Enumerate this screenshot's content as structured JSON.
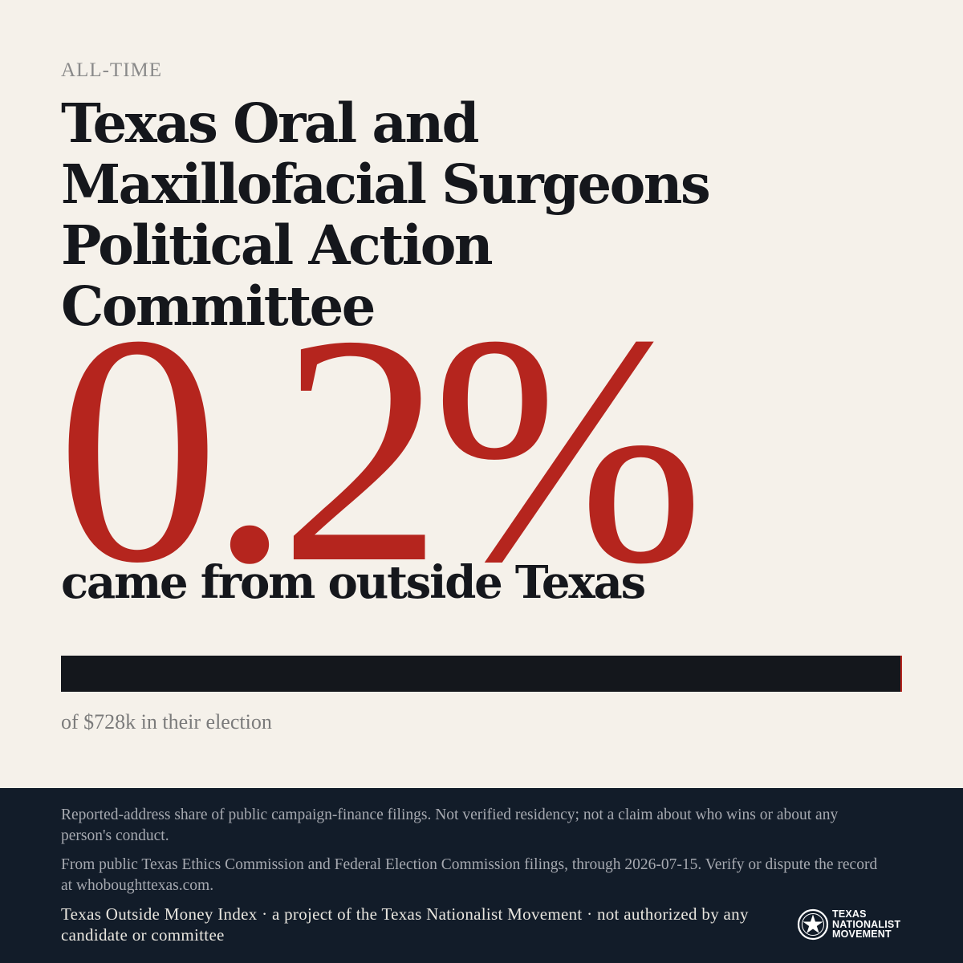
{
  "eyebrow": "ALL-TIME",
  "committee_name": "Texas Oral and Maxillofacial Surgeons Political Action Committee",
  "headline": {
    "percent_text": "0.2%",
    "percent_value": 0.2,
    "subhead": "came from outside Texas"
  },
  "bar": {
    "share_outside_percent": 0.2,
    "caption": "of $728k in their election"
  },
  "colors": {
    "background": "#f5f1ea",
    "accent_red": "#b5251e",
    "ink": "#15171c",
    "footer_bg": "#121c29"
  },
  "footer": {
    "disclaimer": "Reported-address share of public campaign-finance filings. Not verified residency; not a claim about who wins or about any person's conduct.",
    "source": "From public Texas Ethics Commission and Federal Election Commission filings, through 2026-07-15. Verify or dispute the record at whoboughttexas.com.",
    "credit": "Texas Outside Money Index · a project of the Texas Nationalist Movement · not authorized by any candidate or committee"
  },
  "logo": {
    "icon": "star-seal-icon",
    "line1": "TEXAS",
    "line2": "NATIONALIST",
    "line3": "MOVEMENT"
  }
}
